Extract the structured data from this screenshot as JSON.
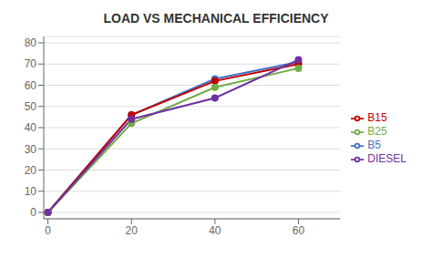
{
  "chart_data": {
    "type": "line",
    "title": "LOAD VS MECHANICAL EFFICIENCY",
    "x": [
      0,
      20,
      40,
      60
    ],
    "series": [
      {
        "name": "B5",
        "color": "#4472C4",
        "values": [
          0,
          46,
          63,
          71
        ]
      },
      {
        "name": "B15",
        "color": "#C00000",
        "values": [
          0,
          46,
          62,
          70
        ]
      },
      {
        "name": "B25",
        "color": "#70AD47",
        "values": [
          0,
          42,
          59,
          68
        ]
      },
      {
        "name": "DIESEL",
        "color": "#7030A0",
        "values": [
          0,
          44,
          54,
          72
        ]
      }
    ],
    "xlim": [
      -1,
      70
    ],
    "ylim": [
      -3,
      83
    ],
    "xticks": [
      0,
      20,
      40,
      60
    ],
    "yticks": [
      0,
      10,
      20,
      30,
      40,
      50,
      60,
      70,
      80
    ],
    "grid": true,
    "legend": "right",
    "marker": "circle"
  }
}
